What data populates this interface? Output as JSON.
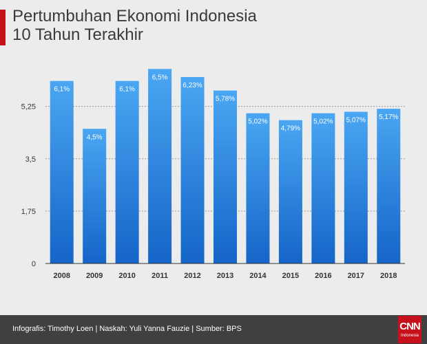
{
  "header": {
    "title_line1": "Pertumbuhan Ekonomi Indonesia",
    "title_line2": "10 Tahun Terakhir"
  },
  "footer": {
    "credits": "Infografis: Timothy Loen | Naskah: Yuli Yanna Fauzie | Sumber: BPS",
    "logo_text": "CNN",
    "logo_subtext": "Indonesia"
  },
  "colors": {
    "bar_top": "#4aa6f2",
    "bar_bottom": "#1565c8",
    "accent": "#c5101c",
    "footer_bg": "#404040"
  },
  "chart_data": {
    "type": "bar",
    "title": "Pertumbuhan Ekonomi Indonesia 10 Tahun Terakhir",
    "categories": [
      "2008",
      "2009",
      "2010",
      "2011",
      "2012",
      "2013",
      "2014",
      "2015",
      "2016",
      "2017",
      "2018"
    ],
    "values": [
      6.1,
      4.5,
      6.1,
      6.5,
      6.23,
      5.78,
      5.02,
      4.79,
      5.02,
      5.07,
      5.17
    ],
    "data_labels": [
      "6,1%",
      "4,5%",
      "6,1%",
      "6,5%",
      "6,23%",
      "5,78%",
      "5,02%",
      "4,79%",
      "5,02%",
      "5,07%",
      "5,17%"
    ],
    "y_ticks": [
      0,
      1.75,
      3.5,
      5.25
    ],
    "y_tick_labels": [
      "0",
      "1,75",
      "3,5",
      "5,25"
    ],
    "ylim": [
      0,
      6.5
    ],
    "grid": true,
    "xlabel": "",
    "ylabel": ""
  }
}
